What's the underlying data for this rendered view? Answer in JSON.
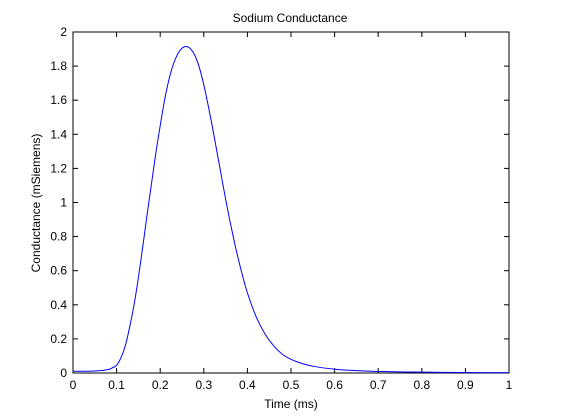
{
  "chart_data": {
    "type": "line",
    "title": "Sodium Conductance",
    "xlabel": "Time (ms)",
    "ylabel": "Conductance (mSiemens)",
    "xlim": [
      0,
      1
    ],
    "ylim": [
      0,
      2
    ],
    "grid": false,
    "legend": "none",
    "x_ticks": [
      "0",
      "0.1",
      "0.2",
      "0.3",
      "0.4",
      "0.5",
      "0.6",
      "0.7",
      "0.8",
      "0.9",
      "1"
    ],
    "y_ticks": [
      "0",
      "0.2",
      "0.4",
      "0.6",
      "0.8",
      "1",
      "1.2",
      "1.4",
      "1.6",
      "1.8",
      "2"
    ],
    "line_color": "#0000ff",
    "series": [
      {
        "x": [
          0,
          0.05,
          0.08,
          0.09,
          0.1,
          0.11,
          0.12,
          0.13,
          0.14,
          0.15,
          0.16,
          0.17,
          0.18,
          0.19,
          0.2,
          0.21,
          0.22,
          0.23,
          0.24,
          0.25,
          0.26,
          0.27,
          0.28,
          0.29,
          0.3,
          0.31,
          0.32,
          0.33,
          0.34,
          0.35,
          0.36,
          0.37,
          0.38,
          0.39,
          0.4,
          0.42,
          0.44,
          0.46,
          0.48,
          0.5,
          0.52,
          0.55,
          0.6,
          0.65,
          0.7,
          0.8,
          0.9,
          1.0
        ],
        "values": [
          0.01,
          0.012,
          0.02,
          0.03,
          0.045,
          0.09,
          0.16,
          0.27,
          0.4,
          0.56,
          0.74,
          0.93,
          1.11,
          1.29,
          1.45,
          1.6,
          1.72,
          1.81,
          1.87,
          1.905,
          1.915,
          1.9,
          1.86,
          1.79,
          1.69,
          1.57,
          1.44,
          1.3,
          1.16,
          1.02,
          0.89,
          0.77,
          0.66,
          0.56,
          0.47,
          0.33,
          0.23,
          0.16,
          0.11,
          0.08,
          0.06,
          0.04,
          0.022,
          0.014,
          0.009,
          0.005,
          0.003,
          0.002
        ]
      }
    ]
  }
}
